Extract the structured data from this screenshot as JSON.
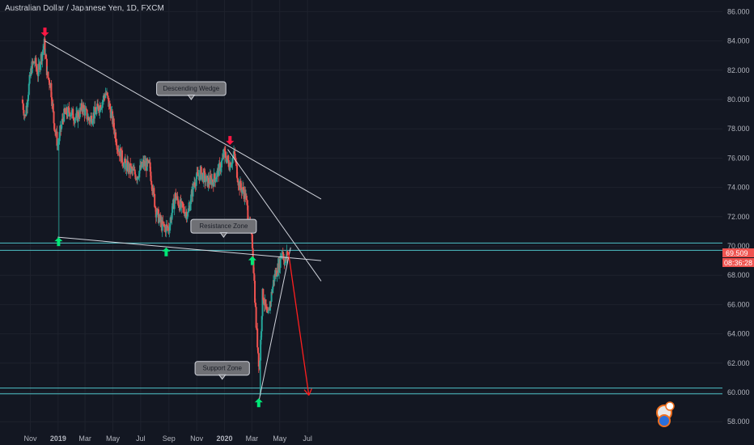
{
  "header": {
    "title": "Australian Dollar / Japanese Yen, 1D, FXCM"
  },
  "price_labels": {
    "last_price": "69.509",
    "countdown": "08:36:28"
  },
  "colors": {
    "background": "#131722",
    "up": "#26a69a",
    "down": "#ef5350",
    "trendline": "#d1d4dc",
    "zone": "#4fc3c8",
    "arrow_up": "#00e676",
    "arrow_down": "#ff1744",
    "projection": "#ff1f1f"
  },
  "chart_data": {
    "type": "candlestick",
    "title": "Australian Dollar / Japanese Yen, 1D, FXCM",
    "xlabel": "",
    "ylabel": "",
    "x_ticks": [
      "Nov",
      "2019",
      "Mar",
      "May",
      "Jul",
      "Sep",
      "Nov",
      "2020",
      "Mar",
      "May",
      "Jul"
    ],
    "y_ticks": [
      "58.000",
      "60.000",
      "62.000",
      "64.000",
      "66.000",
      "68.000",
      "70.000",
      "72.000",
      "74.000",
      "76.000",
      "78.000",
      "80.000",
      "82.000",
      "84.000",
      "86.000"
    ],
    "ylim": [
      57.5,
      86.5
    ],
    "last_price": 69.509,
    "price_path": [
      [
        "2018-10-15",
        80.0
      ],
      [
        "2018-10-22",
        78.8
      ],
      [
        "2018-10-29",
        80.6
      ],
      [
        "2018-11-05",
        82.2
      ],
      [
        "2018-11-12",
        82.6
      ],
      [
        "2018-11-19",
        81.8
      ],
      [
        "2018-11-26",
        82.9
      ],
      [
        "2018-12-03",
        83.8
      ],
      [
        "2018-12-10",
        81.6
      ],
      [
        "2018-12-17",
        81.0
      ],
      [
        "2018-12-24",
        78.5
      ],
      [
        "2019-01-02",
        76.8
      ],
      [
        "2019-01-07",
        77.8
      ],
      [
        "2019-01-14",
        78.9
      ],
      [
        "2019-01-28",
        79.2
      ],
      [
        "2019-02-11",
        78.7
      ],
      [
        "2019-02-25",
        79.5
      ],
      [
        "2019-03-11",
        78.6
      ],
      [
        "2019-03-25",
        79.1
      ],
      [
        "2019-04-08",
        79.8
      ],
      [
        "2019-04-17",
        80.5
      ],
      [
        "2019-04-29",
        79.0
      ],
      [
        "2019-05-13",
        76.8
      ],
      [
        "2019-05-27",
        75.6
      ],
      [
        "2019-06-10",
        75.2
      ],
      [
        "2019-06-24",
        74.8
      ],
      [
        "2019-07-08",
        75.6
      ],
      [
        "2019-07-22",
        75.4
      ],
      [
        "2019-08-05",
        72.4
      ],
      [
        "2019-08-19",
        71.3
      ],
      [
        "2019-09-02",
        71.2
      ],
      [
        "2019-09-16",
        73.4
      ],
      [
        "2019-09-30",
        72.6
      ],
      [
        "2019-10-14",
        72.2
      ],
      [
        "2019-10-28",
        74.4
      ],
      [
        "2019-11-11",
        75.0
      ],
      [
        "2019-11-25",
        74.4
      ],
      [
        "2019-12-09",
        74.5
      ],
      [
        "2019-12-23",
        75.3
      ],
      [
        "2020-01-02",
        76.3
      ],
      [
        "2020-01-13",
        75.6
      ],
      [
        "2020-01-24",
        76.2
      ],
      [
        "2020-02-03",
        74.2
      ],
      [
        "2020-02-17",
        73.5
      ],
      [
        "2020-02-28",
        71.0
      ],
      [
        "2020-03-04",
        70.0
      ],
      [
        "2020-03-12",
        64.5
      ],
      [
        "2020-03-19",
        61.5
      ],
      [
        "2020-03-26",
        66.8
      ],
      [
        "2020-04-06",
        65.0
      ],
      [
        "2020-04-20",
        67.8
      ],
      [
        "2020-05-01",
        68.7
      ],
      [
        "2020-05-08",
        69.8
      ],
      [
        "2020-05-14",
        68.8
      ],
      [
        "2020-05-19",
        69.5
      ]
    ],
    "trendlines": [
      {
        "name": "wedge-upper",
        "points": [
          [
            "2018-12-03",
            84.0
          ],
          [
            "2020-07-31",
            73.2
          ]
        ]
      },
      {
        "name": "wedge-lower",
        "points": [
          [
            "2018-12-31",
            70.6
          ],
          [
            "2020-07-31",
            69.0
          ]
        ]
      },
      {
        "name": "falling-line",
        "points": [
          [
            "2020-01-08",
            76.6
          ],
          [
            "2020-07-31",
            67.6
          ]
        ]
      },
      {
        "name": "rising-line",
        "points": [
          [
            "2020-03-17",
            59.5
          ],
          [
            "2020-05-25",
            69.9
          ]
        ]
      }
    ],
    "zones": [
      {
        "name": "resistance-zone",
        "label": "Resistance Zone",
        "low": 69.7,
        "high": 70.2
      },
      {
        "name": "support-zone",
        "label": "Support Zone",
        "low": 59.9,
        "high": 60.3
      }
    ],
    "annotations": [
      {
        "name": "descending-wedge-label",
        "text": "Descending Wedge",
        "date": "2019-10-20",
        "price": 80.0,
        "pointer": "down"
      },
      {
        "name": "resistance-zone-label",
        "text": "Resistance Zone",
        "date": "2019-12-30",
        "price": 70.6,
        "pointer": "down"
      },
      {
        "name": "support-zone-label",
        "text": "Support Zone",
        "date": "2019-12-27",
        "price": 60.9,
        "pointer": "down"
      }
    ],
    "markers": [
      {
        "type": "down",
        "date": "2018-12-03",
        "price": 84.3
      },
      {
        "type": "down",
        "date": "2020-01-13",
        "price": 76.9
      },
      {
        "type": "up",
        "date": "2019-01-02",
        "price": 70.6
      },
      {
        "type": "up",
        "date": "2019-08-26",
        "price": 69.9
      },
      {
        "type": "up",
        "date": "2020-03-02",
        "price": 69.3
      },
      {
        "type": "up",
        "date": "2020-03-16",
        "price": 59.6
      }
    ],
    "projection": {
      "from": [
        "2020-05-20",
        69.6
      ],
      "to": [
        "2020-07-04",
        59.8
      ]
    }
  }
}
